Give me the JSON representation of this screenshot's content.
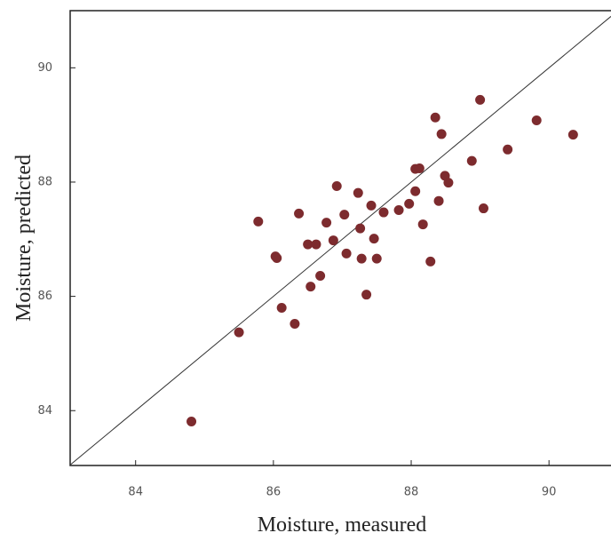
{
  "chart_data": {
    "type": "scatter",
    "xlabel": "Moisture, measured",
    "ylabel": "Moisture, predicted",
    "x": [
      84.81,
      85.5,
      85.78,
      86.03,
      86.05,
      86.12,
      86.31,
      86.37,
      86.54,
      86.5,
      86.62,
      86.68,
      86.77,
      86.87,
      86.92,
      87.03,
      87.06,
      87.23,
      87.26,
      87.28,
      87.35,
      87.42,
      87.46,
      87.5,
      87.6,
      87.82,
      87.97,
      88.06,
      88.12,
      88.06,
      88.17,
      88.28,
      88.35,
      88.4,
      88.44,
      88.49,
      88.54,
      88.88,
      89.0,
      89.05,
      89.4,
      89.82,
      90.35
    ],
    "values": [
      83.81,
      85.37,
      87.31,
      86.7,
      86.67,
      85.8,
      85.52,
      87.45,
      86.17,
      86.91,
      86.91,
      86.36,
      87.29,
      86.98,
      87.93,
      87.43,
      86.75,
      87.81,
      87.19,
      86.66,
      86.03,
      87.59,
      87.01,
      86.66,
      87.47,
      87.51,
      87.62,
      88.23,
      88.24,
      87.84,
      87.26,
      86.61,
      89.13,
      87.67,
      88.84,
      88.11,
      87.99,
      88.37,
      89.44,
      87.54,
      88.57,
      89.08,
      88.83
    ],
    "color": "#7d2b2e",
    "xlim": [
      83.05,
      90.9
    ],
    "ylim": [
      83.04,
      91.0
    ],
    "xticks": [
      84,
      86,
      88,
      90
    ],
    "yticks": [
      84,
      86,
      88,
      90
    ],
    "identity_line": true
  }
}
